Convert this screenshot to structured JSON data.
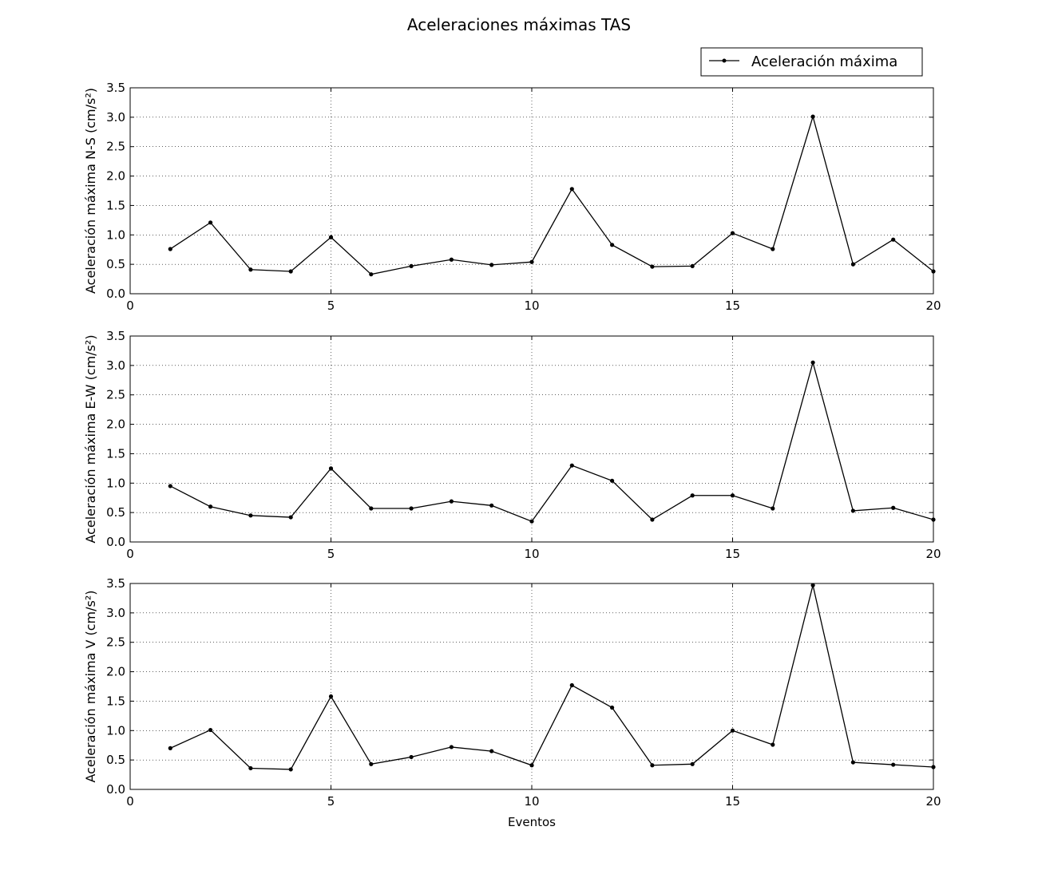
{
  "chart_data": {
    "type": "line",
    "title": "Aceleraciones máximas TAS",
    "legend": {
      "label": "Aceleración máxima",
      "placement": "top-right"
    },
    "xlabel": "Eventos",
    "x": [
      1,
      2,
      3,
      4,
      5,
      6,
      7,
      8,
      9,
      10,
      11,
      12,
      13,
      14,
      15,
      16,
      17,
      18,
      19,
      20
    ],
    "xlim": [
      0,
      20
    ],
    "xticks": [
      "0",
      "5",
      "10",
      "15",
      "20"
    ],
    "yticks": [
      "0.0",
      "0.5",
      "1.0",
      "1.5",
      "2.0",
      "2.5",
      "3.0",
      "3.5"
    ],
    "grid": true,
    "line_color": "#000000",
    "subplots": [
      {
        "ylabel": "Aceleración máxima N-S (cm/s²)",
        "ylim": [
          0,
          3.5
        ],
        "values": [
          0.76,
          1.21,
          0.41,
          0.38,
          0.96,
          0.33,
          0.47,
          0.58,
          0.49,
          0.54,
          1.78,
          0.83,
          0.46,
          0.47,
          1.03,
          0.76,
          3.01,
          0.5,
          0.92,
          0.38
        ]
      },
      {
        "ylabel": "Aceleración máxima E-W (cm/s²)",
        "ylim": [
          0,
          3.5
        ],
        "values": [
          0.95,
          0.6,
          0.45,
          0.42,
          1.25,
          0.57,
          0.57,
          0.69,
          0.62,
          0.35,
          1.3,
          1.04,
          0.38,
          0.79,
          0.79,
          0.57,
          3.05,
          0.53,
          0.58,
          0.38
        ]
      },
      {
        "ylabel": "Aceleración máxima V (cm/s²)",
        "ylim": [
          0,
          3.5
        ],
        "values": [
          0.7,
          1.01,
          0.36,
          0.34,
          1.58,
          0.43,
          0.55,
          0.72,
          0.65,
          0.41,
          1.77,
          1.39,
          0.41,
          0.43,
          1.0,
          0.76,
          3.47,
          0.46,
          0.42,
          0.38
        ]
      }
    ]
  }
}
